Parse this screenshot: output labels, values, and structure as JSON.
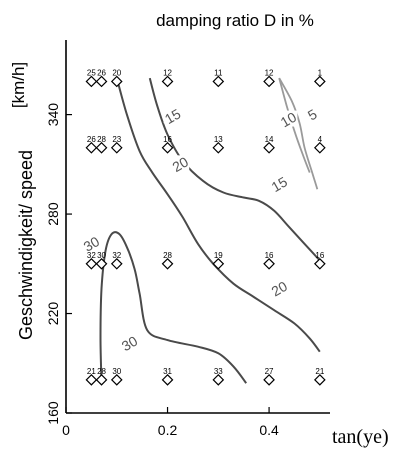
{
  "chart_data": {
    "type": "scatter",
    "title": "damping ratio D in %",
    "xlabel": "tan(ye)",
    "ylabel": "Geschwindigkeit/ speed",
    "y_unit": "[km/h]",
    "xlim": [
      0,
      0.52
    ],
    "ylim": [
      160,
      385
    ],
    "x_ticks": [
      "0",
      "0.2",
      "0.4"
    ],
    "x_tick_values": [
      0,
      0.2,
      0.4
    ],
    "y_ticks": [
      "160",
      "220",
      "280",
      "340"
    ],
    "y_tick_values": [
      160,
      220,
      280,
      340
    ],
    "grid": false,
    "points": [
      {
        "x": 0.05,
        "y": 360,
        "label": "25"
      },
      {
        "x": 0.07,
        "y": 360,
        "label": "26"
      },
      {
        "x": 0.1,
        "y": 360,
        "label": "20"
      },
      {
        "x": 0.2,
        "y": 360,
        "label": "12"
      },
      {
        "x": 0.3,
        "y": 360,
        "label": "11"
      },
      {
        "x": 0.4,
        "y": 360,
        "label": "12"
      },
      {
        "x": 0.5,
        "y": 360,
        "label": "1"
      },
      {
        "x": 0.05,
        "y": 320,
        "label": "26"
      },
      {
        "x": 0.07,
        "y": 320,
        "label": "28"
      },
      {
        "x": 0.1,
        "y": 320,
        "label": "23"
      },
      {
        "x": 0.2,
        "y": 320,
        "label": "16"
      },
      {
        "x": 0.3,
        "y": 320,
        "label": "13"
      },
      {
        "x": 0.4,
        "y": 320,
        "label": "14"
      },
      {
        "x": 0.5,
        "y": 320,
        "label": "4"
      },
      {
        "x": 0.05,
        "y": 250,
        "label": "32"
      },
      {
        "x": 0.07,
        "y": 250,
        "label": "30"
      },
      {
        "x": 0.1,
        "y": 250,
        "label": "32"
      },
      {
        "x": 0.2,
        "y": 250,
        "label": "28"
      },
      {
        "x": 0.3,
        "y": 250,
        "label": "19"
      },
      {
        "x": 0.4,
        "y": 250,
        "label": "16"
      },
      {
        "x": 0.5,
        "y": 250,
        "label": "16"
      },
      {
        "x": 0.05,
        "y": 180,
        "label": "21"
      },
      {
        "x": 0.07,
        "y": 180,
        "label": "28"
      },
      {
        "x": 0.1,
        "y": 180,
        "label": "30"
      },
      {
        "x": 0.2,
        "y": 180,
        "label": "31"
      },
      {
        "x": 0.3,
        "y": 180,
        "label": "33"
      },
      {
        "x": 0.4,
        "y": 180,
        "label": "27"
      },
      {
        "x": 0.5,
        "y": 180,
        "label": "21"
      }
    ],
    "contours": [
      {
        "level": "5",
        "color": "#9a9a9a",
        "points": [
          [
            0.42,
            362
          ],
          [
            0.445,
            348
          ],
          [
            0.46,
            335
          ],
          [
            0.47,
            320
          ],
          [
            0.485,
            305
          ],
          [
            0.495,
            295
          ]
        ],
        "label_at": [
          0.485,
          340
        ]
      },
      {
        "level": "10",
        "color": "#9a9a9a",
        "points": [
          [
            0.42,
            362
          ],
          [
            0.435,
            345
          ],
          [
            0.45,
            330
          ],
          [
            0.465,
            317
          ],
          [
            0.48,
            305
          ]
        ],
        "label_at": [
          0.438,
          337
        ]
      },
      {
        "level": "15",
        "color": "#4a4a4a",
        "points": [
          [
            0.165,
            362
          ],
          [
            0.18,
            345
          ],
          [
            0.2,
            328
          ],
          [
            0.23,
            312
          ],
          [
            0.27,
            300
          ],
          [
            0.31,
            293
          ],
          [
            0.35,
            290
          ],
          [
            0.38,
            288
          ],
          [
            0.41,
            282
          ],
          [
            0.44,
            272
          ],
          [
            0.47,
            262
          ],
          [
            0.5,
            252
          ]
        ],
        "label_at": [
          0.21,
          339
        ]
      },
      {
        "level": "15",
        "color": "#4a4a4a",
        "points": [
          [
            0.165,
            362
          ],
          [
            0.18,
            345
          ],
          [
            0.2,
            328
          ],
          [
            0.23,
            312
          ],
          [
            0.27,
            300
          ],
          [
            0.31,
            293
          ],
          [
            0.35,
            290
          ],
          [
            0.38,
            288
          ],
          [
            0.41,
            282
          ],
          [
            0.44,
            272
          ],
          [
            0.47,
            262
          ],
          [
            0.5,
            252
          ]
        ],
        "label_at": [
          0.42,
          298
        ]
      },
      {
        "level": "20",
        "color": "#4a4a4a",
        "points": [
          [
            0.1,
            362
          ],
          [
            0.12,
            340
          ],
          [
            0.145,
            318
          ],
          [
            0.17,
            305
          ],
          [
            0.2,
            292
          ],
          [
            0.23,
            278
          ],
          [
            0.26,
            262
          ],
          [
            0.29,
            250
          ],
          [
            0.33,
            238
          ],
          [
            0.37,
            230
          ],
          [
            0.41,
            222
          ],
          [
            0.45,
            214
          ],
          [
            0.48,
            205
          ],
          [
            0.5,
            197
          ]
        ],
        "label_at": [
          0.225,
          310
        ]
      },
      {
        "level": "20",
        "color": "#4a4a4a",
        "points": [
          [
            0.1,
            362
          ],
          [
            0.12,
            340
          ],
          [
            0.145,
            318
          ],
          [
            0.17,
            305
          ],
          [
            0.2,
            292
          ],
          [
            0.23,
            278
          ],
          [
            0.26,
            262
          ],
          [
            0.29,
            250
          ],
          [
            0.33,
            238
          ],
          [
            0.37,
            230
          ],
          [
            0.41,
            222
          ],
          [
            0.45,
            214
          ],
          [
            0.48,
            205
          ],
          [
            0.5,
            197
          ]
        ],
        "label_at": [
          0.42,
          235
        ]
      },
      {
        "level": "30",
        "color": "#4a4a4a",
        "points": [
          [
            0.07,
            178
          ],
          [
            0.068,
            205
          ],
          [
            0.07,
            235
          ],
          [
            0.078,
            258
          ],
          [
            0.09,
            268
          ],
          [
            0.105,
            268
          ],
          [
            0.12,
            260
          ],
          [
            0.135,
            247
          ],
          [
            0.145,
            232
          ],
          [
            0.16,
            210
          ],
          [
            0.2,
            204
          ],
          [
            0.26,
            200
          ],
          [
            0.3,
            196
          ],
          [
            0.33,
            188
          ],
          [
            0.355,
            178
          ]
        ],
        "label_at": [
          0.05,
          262
        ]
      },
      {
        "level": "30",
        "color": "#4a4a4a",
        "points": [
          [
            0.07,
            178
          ],
          [
            0.068,
            205
          ],
          [
            0.07,
            235
          ],
          [
            0.078,
            258
          ],
          [
            0.09,
            268
          ],
          [
            0.105,
            268
          ],
          [
            0.12,
            260
          ],
          [
            0.135,
            247
          ],
          [
            0.145,
            232
          ],
          [
            0.16,
            210
          ],
          [
            0.2,
            204
          ],
          [
            0.26,
            200
          ],
          [
            0.3,
            196
          ],
          [
            0.33,
            188
          ],
          [
            0.355,
            178
          ]
        ],
        "label_at": [
          0.125,
          202
        ]
      }
    ]
  }
}
